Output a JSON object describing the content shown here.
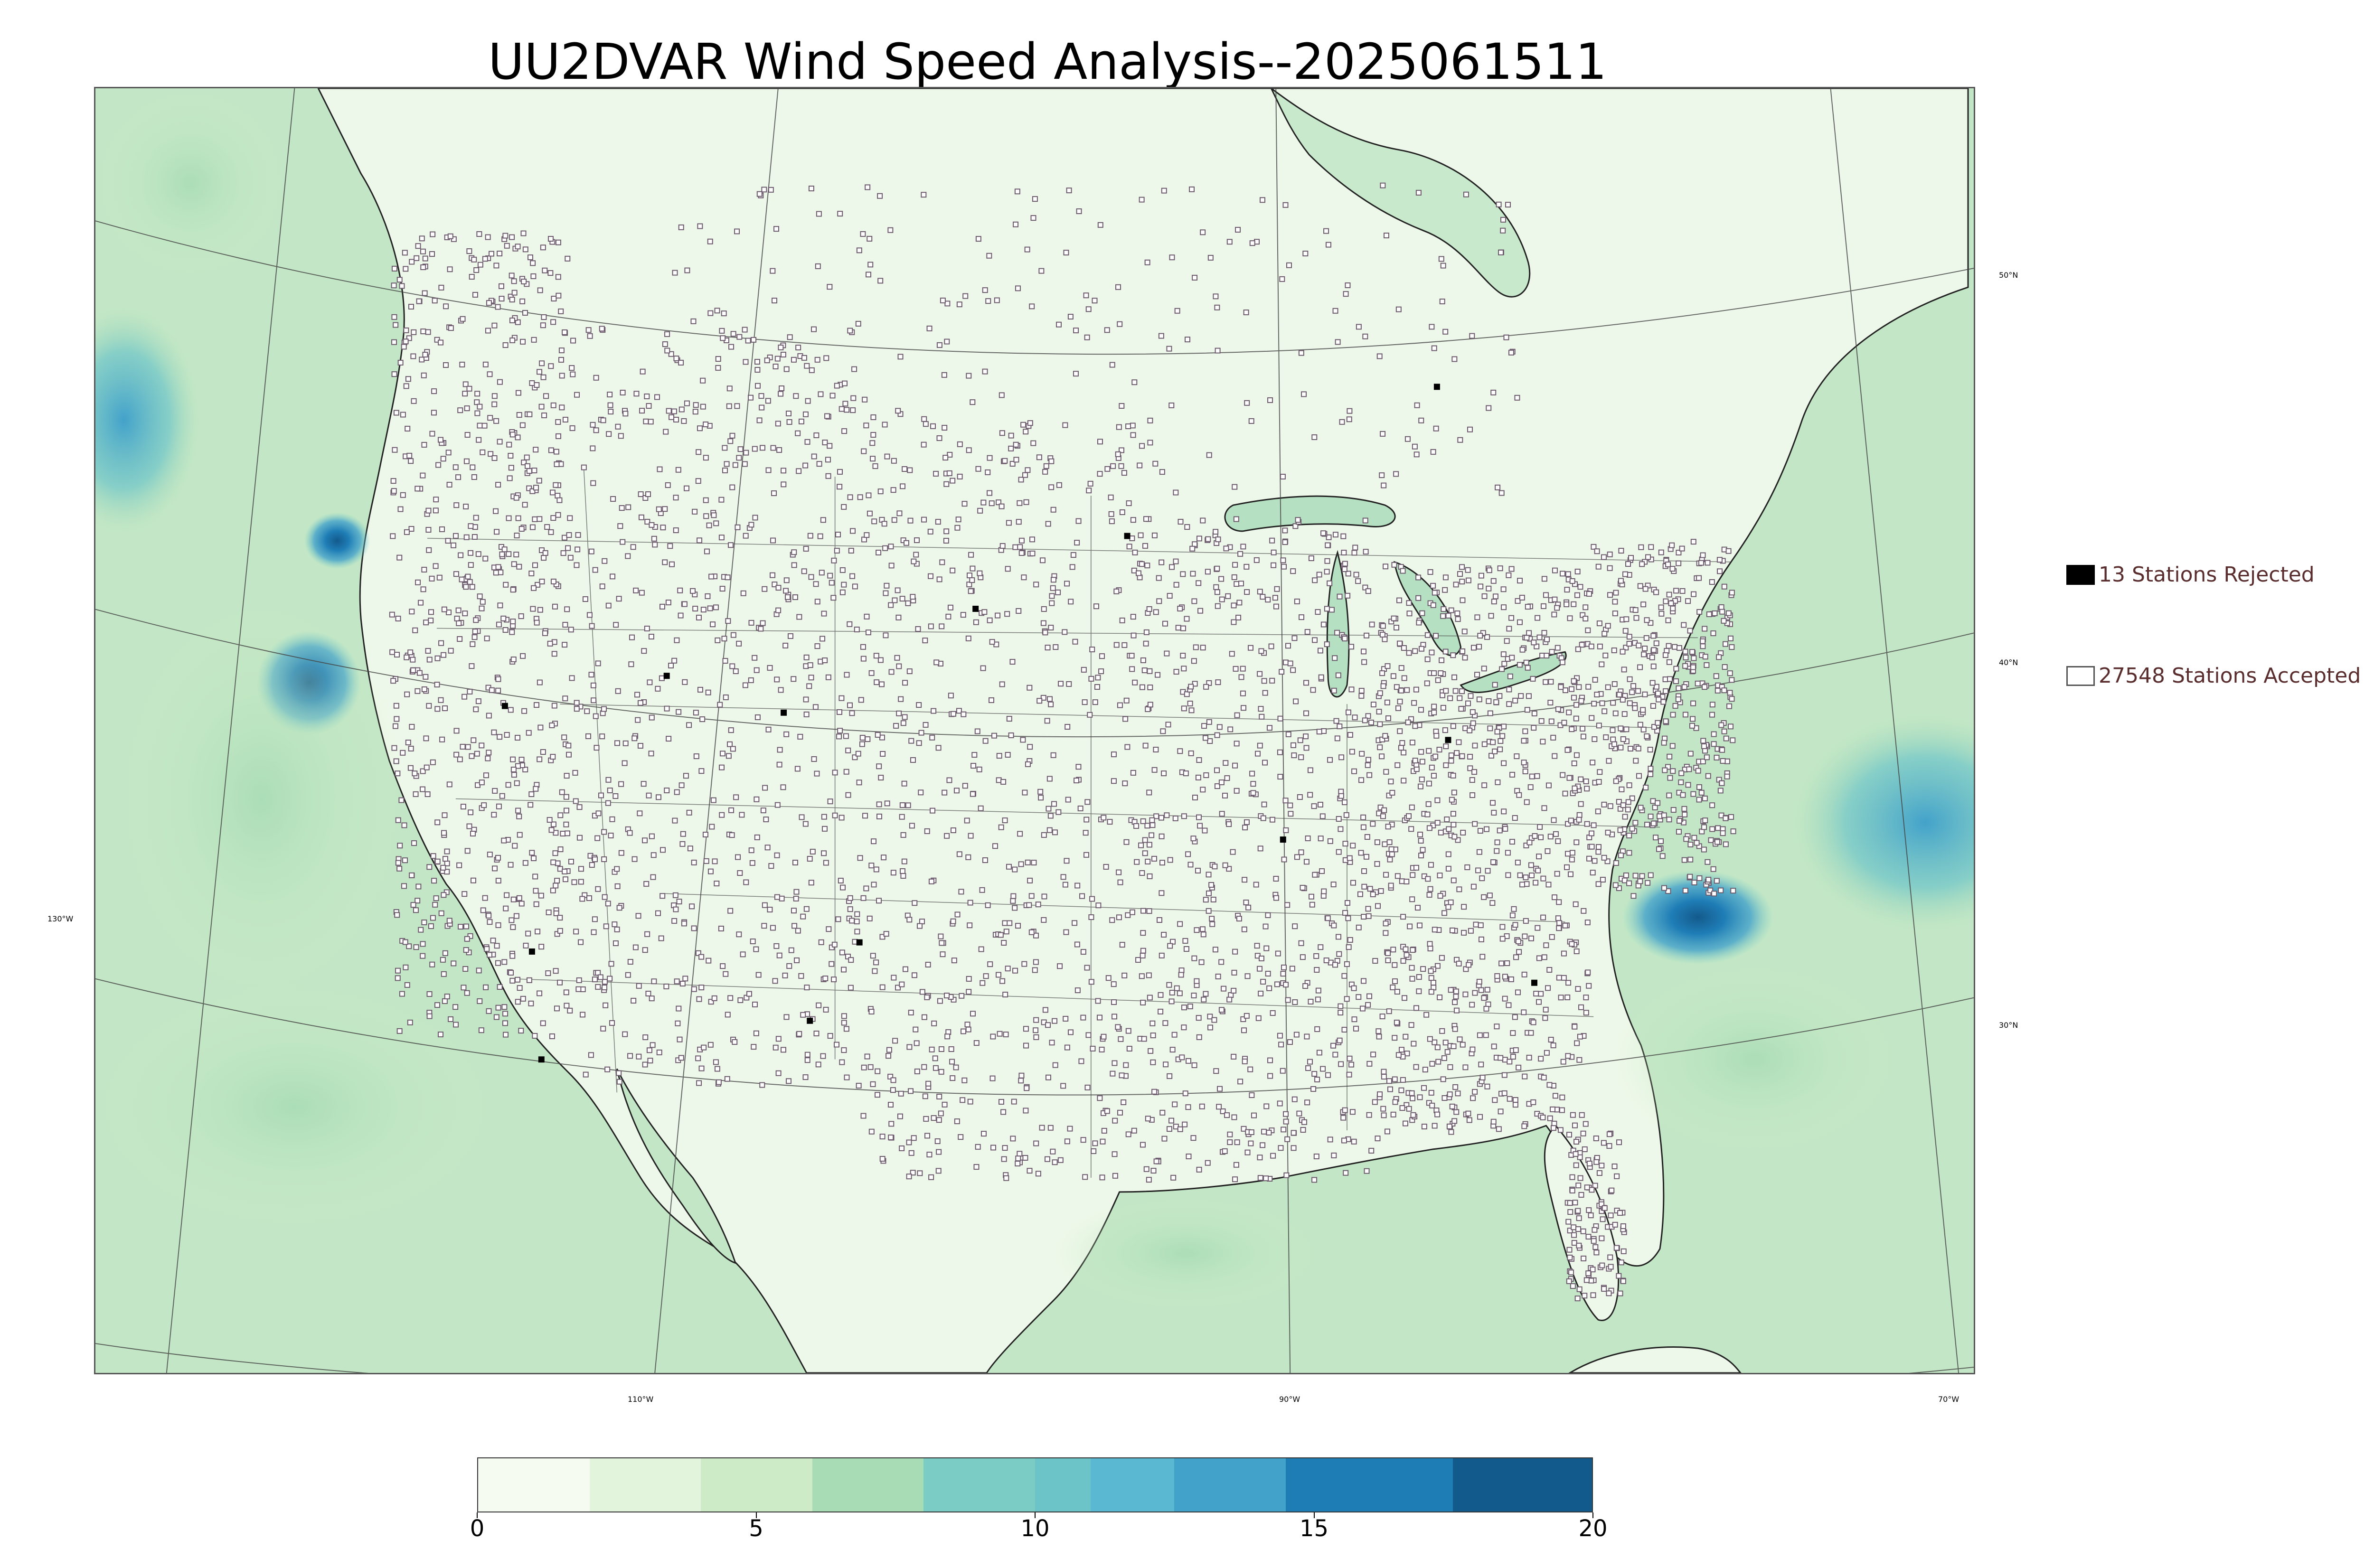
{
  "title": "UU2DVAR Wind Speed Analysis--2025061511",
  "map": {
    "longitude_labels": [
      "110°W",
      "90°W",
      "70°W"
    ],
    "latitude_labels_right": [
      "50°N",
      "40°N",
      "30°N"
    ],
    "latitude_label_left": "130°W",
    "ocean_color": "#b9e3c4",
    "land_color": "#eaf7e6",
    "station_marker_color": "#6b5a6b"
  },
  "legend": {
    "rejected": {
      "label": "13 Stations Rejected",
      "swatch": "#000000"
    },
    "accepted": {
      "label": "27548 Stations Accepted",
      "swatch": "#ffffff"
    }
  },
  "colorbar": {
    "min": 0,
    "max": 20,
    "ticks": [
      "0",
      "5",
      "10",
      "15",
      "20"
    ],
    "bands": [
      {
        "from": 0,
        "to": 2,
        "color": "#f5fbf0"
      },
      {
        "from": 2,
        "to": 4,
        "color": "#e3f4dc"
      },
      {
        "from": 4,
        "to": 6,
        "color": "#ccebc6"
      },
      {
        "from": 6,
        "to": 8,
        "color": "#a8dcb5"
      },
      {
        "from": 8,
        "to": 10,
        "color": "#7bccc4"
      },
      {
        "from": 10,
        "to": 11,
        "color": "#6cc4c8"
      },
      {
        "from": 11,
        "to": 12.5,
        "color": "#5ab8d3"
      },
      {
        "from": 12.5,
        "to": 14.5,
        "color": "#43a2ca"
      },
      {
        "from": 14.5,
        "to": 17.5,
        "color": "#1f7db6"
      },
      {
        "from": 17.5,
        "to": 20,
        "color": "#135a8c"
      }
    ]
  }
}
